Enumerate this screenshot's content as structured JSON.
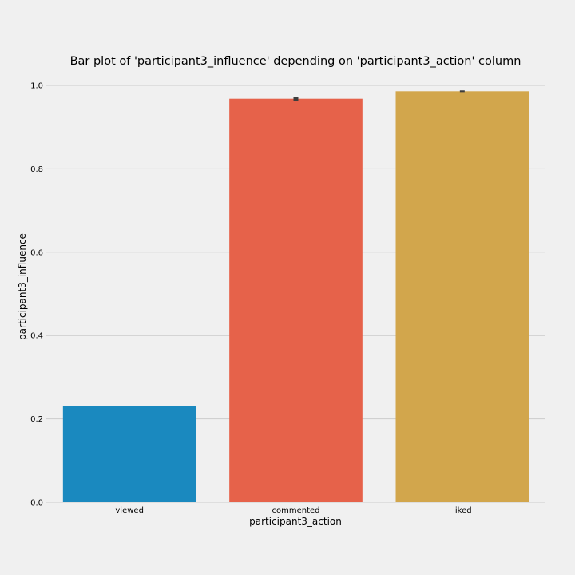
{
  "chart_data": {
    "type": "bar",
    "title": "Bar plot of 'participant3_influence' depending on 'participant3_action' column",
    "xlabel": "participant3_action",
    "ylabel": "participant3_influence",
    "categories": [
      "viewed",
      "commented",
      "liked"
    ],
    "values": [
      0.231,
      0.968,
      0.986
    ],
    "error_bars": [
      {
        "low": 0.231,
        "high": 0.231
      },
      {
        "low": 0.963,
        "high": 0.972
      },
      {
        "low": 0.984,
        "high": 0.988
      }
    ],
    "colors": [
      "#1a89bf",
      "#e6624a",
      "#d2a64c"
    ],
    "error_color": "#3d3d3d",
    "ylim": [
      0,
      1.0
    ],
    "yticks": [
      "0.0",
      "0.2",
      "0.4",
      "0.6",
      "0.8",
      "1.0"
    ],
    "ytick_values": [
      0,
      0.2,
      0.4,
      0.6,
      0.8,
      1.0
    ],
    "grid": true,
    "grid_axis": "y",
    "legend": "none",
    "background": "#f0f0f0"
  }
}
